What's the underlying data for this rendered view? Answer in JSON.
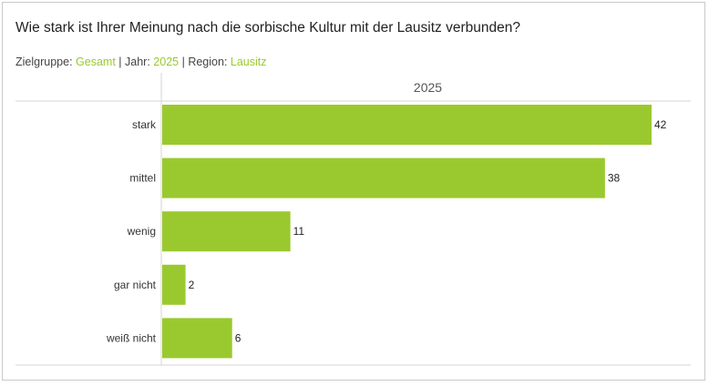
{
  "title": "Wie stark ist Ihrer Meinung nach die sorbische Kultur mit der Lausitz verbunden?",
  "filters": {
    "zielgruppe_label": "Zielgruppe:",
    "zielgruppe_value": "Gesamt",
    "sep1": "|",
    "jahr_label": "Jahr:",
    "jahr_value": "2025",
    "sep2": "|",
    "region_label": "Region:",
    "region_value": "Lausitz"
  },
  "colors": {
    "bar": "#9ac92f",
    "accent": "#9ac92f"
  },
  "chart_data": {
    "type": "bar",
    "orientation": "horizontal",
    "title": "Wie stark ist Ihrer Meinung nach die sorbische Kultur mit der Lausitz verbunden?",
    "column_header": "2025",
    "categories": [
      "stark",
      "mittel",
      "wenig",
      "gar nicht",
      "weiß nicht"
    ],
    "values": [
      42,
      38,
      11,
      2,
      6
    ],
    "xlabel": "",
    "ylabel": "",
    "xlim": [
      0,
      42
    ]
  }
}
